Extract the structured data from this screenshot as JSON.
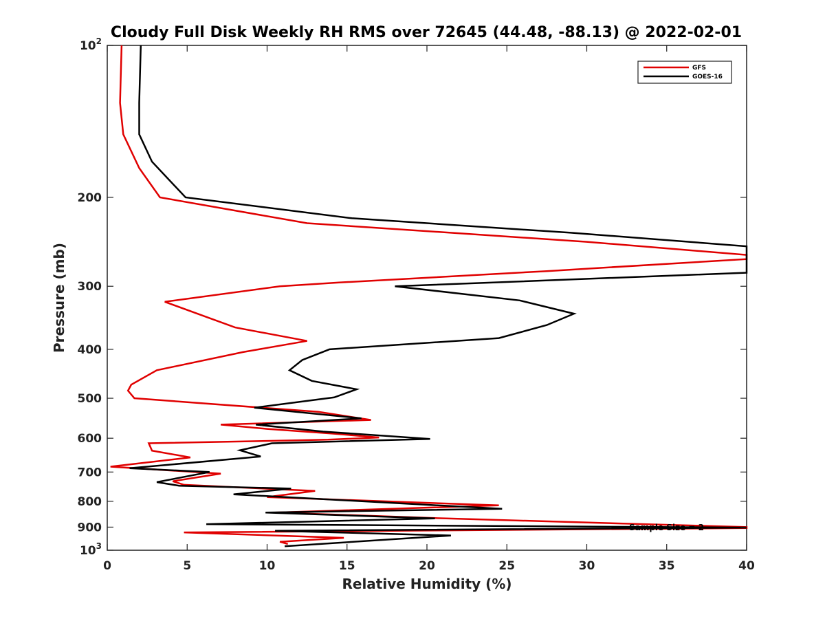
{
  "chart_data": {
    "type": "line",
    "title": "Cloudy Full Disk Weekly RH RMS over 72645 (44.48, -88.13) @ 2022-02-01",
    "xlabel": "Relative Humidity (%)",
    "ylabel": "Pressure (mb)",
    "xlim": [
      0,
      40
    ],
    "ylim": [
      100,
      1000
    ],
    "y_scale": "log",
    "y_reversed": true,
    "grid": false,
    "legend_position": "top-right",
    "x_ticks": [
      "0",
      "5",
      "10",
      "15",
      "20",
      "25",
      "30",
      "35",
      "40"
    ],
    "y_ticks": [
      {
        "value": 100,
        "base": "10",
        "exp": "2"
      },
      {
        "value": 200,
        "label": "200"
      },
      {
        "value": 300,
        "label": "300"
      },
      {
        "value": 400,
        "label": "400"
      },
      {
        "value": 500,
        "label": "500"
      },
      {
        "value": 600,
        "label": "600"
      },
      {
        "value": 700,
        "label": "700"
      },
      {
        "value": 800,
        "label": "800"
      },
      {
        "value": 900,
        "label": "900"
      },
      {
        "value": 1000,
        "base": "10",
        "exp": "3"
      }
    ],
    "annotation": "Sample Size = 2",
    "series": [
      {
        "name": "GFS",
        "color": "#e00000",
        "points": [
          [
            0.9,
            100
          ],
          [
            0.8,
            130
          ],
          [
            1.0,
            150
          ],
          [
            2.0,
            175
          ],
          [
            3.3,
            200
          ],
          [
            12.5,
            225
          ],
          [
            30.0,
            245
          ],
          [
            40.0,
            260
          ],
          [
            40.0,
            265
          ],
          [
            27.5,
            280
          ],
          [
            14.5,
            295
          ],
          [
            10.8,
            300
          ],
          [
            3.6,
            322
          ],
          [
            6.2,
            345
          ],
          [
            8.0,
            362
          ],
          [
            12.5,
            385
          ],
          [
            8.5,
            405
          ],
          [
            3.1,
            440
          ],
          [
            1.5,
            470
          ],
          [
            1.3,
            483
          ],
          [
            1.7,
            500
          ],
          [
            13.2,
            532
          ],
          [
            16.5,
            552
          ],
          [
            7.1,
            564
          ],
          [
            10.0,
            575
          ],
          [
            14.0,
            587
          ],
          [
            17.0,
            598
          ],
          [
            13.8,
            604
          ],
          [
            2.6,
            614
          ],
          [
            2.8,
            635
          ],
          [
            5.2,
            655
          ],
          [
            0.2,
            683
          ],
          [
            7.1,
            705
          ],
          [
            4.1,
            730
          ],
          [
            4.8,
            742
          ],
          [
            13.0,
            763
          ],
          [
            10.0,
            785
          ],
          [
            24.5,
            815
          ],
          [
            10.5,
            842
          ],
          [
            21.2,
            865
          ],
          [
            40.0,
            900
          ],
          [
            40.0,
            904
          ],
          [
            4.8,
            922
          ],
          [
            14.8,
            945
          ],
          [
            10.8,
            962
          ],
          [
            11.3,
            972
          ]
        ]
      },
      {
        "name": "GOES-16",
        "color": "#000000",
        "points": [
          [
            2.1,
            100
          ],
          [
            2.0,
            130
          ],
          [
            2.0,
            150
          ],
          [
            2.8,
            170
          ],
          [
            4.9,
            200
          ],
          [
            15.3,
            220
          ],
          [
            29.0,
            235
          ],
          [
            40.0,
            250
          ],
          [
            40.0,
            282
          ],
          [
            18.0,
            300
          ],
          [
            25.8,
            320
          ],
          [
            29.2,
            340
          ],
          [
            27.5,
            358
          ],
          [
            24.5,
            380
          ],
          [
            13.9,
            400
          ],
          [
            12.2,
            420
          ],
          [
            11.4,
            440
          ],
          [
            12.8,
            462
          ],
          [
            15.6,
            480
          ],
          [
            14.2,
            498
          ],
          [
            9.2,
            522
          ],
          [
            15.9,
            548
          ],
          [
            9.3,
            564
          ],
          [
            13.5,
            582
          ],
          [
            20.2,
            602
          ],
          [
            10.3,
            614
          ],
          [
            8.3,
            634
          ],
          [
            9.6,
            652
          ],
          [
            1.4,
            688
          ],
          [
            6.4,
            700
          ],
          [
            3.1,
            733
          ],
          [
            4.5,
            745
          ],
          [
            11.5,
            755
          ],
          [
            7.9,
            775
          ],
          [
            24.7,
            828
          ],
          [
            9.9,
            842
          ],
          [
            20.5,
            865
          ],
          [
            6.2,
            888
          ],
          [
            40.0,
            902
          ],
          [
            10.5,
            915
          ],
          [
            21.5,
            935
          ],
          [
            11.1,
            982
          ]
        ]
      }
    ]
  }
}
